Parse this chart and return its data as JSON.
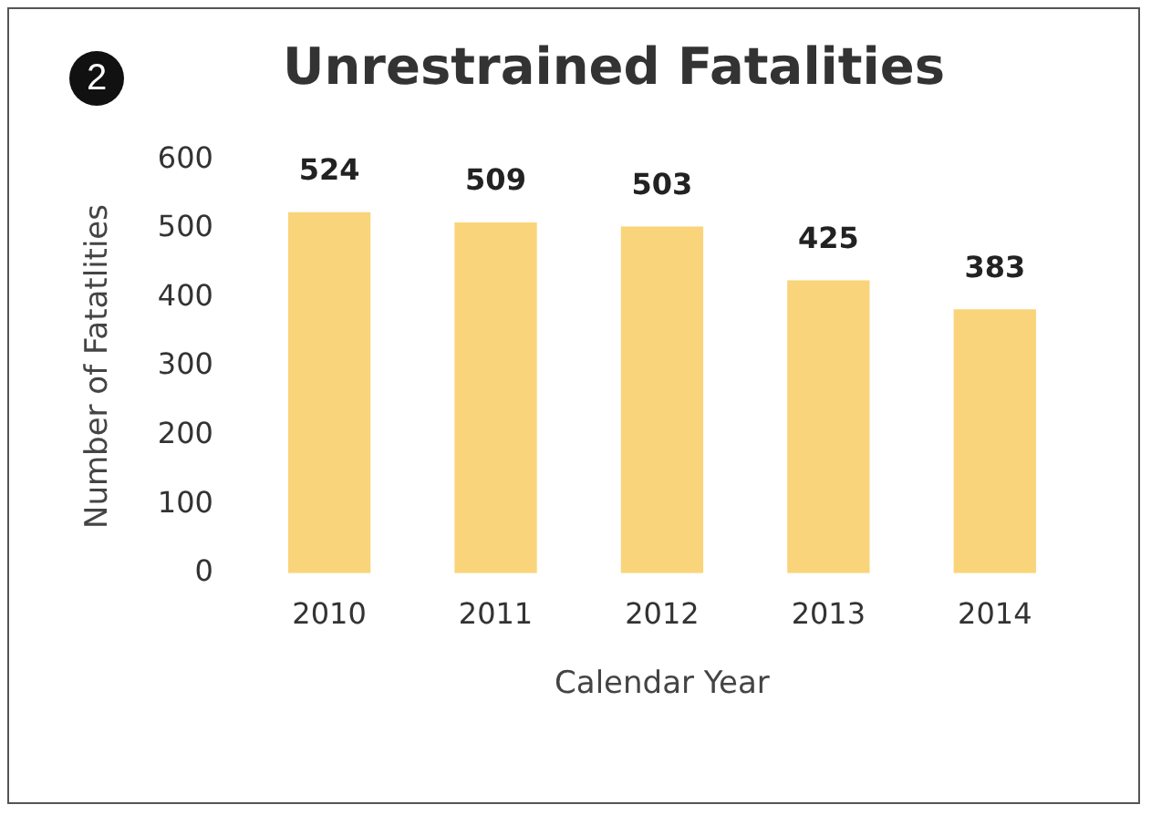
{
  "chart_data": {
    "type": "bar",
    "title": "Unrestrained Fatalities",
    "xlabel": "Calendar Year",
    "ylabel": "Number of Fatatlities",
    "annotations": [
      "2"
    ],
    "categories": [
      "2010",
      "2011",
      "2012",
      "2013",
      "2014"
    ],
    "values": [
      524,
      509,
      503,
      425,
      383
    ],
    "color": "#f9d47a",
    "ylim": [
      0,
      600
    ],
    "yticks": [
      0,
      100,
      200,
      300,
      400,
      500,
      600
    ],
    "grid": false,
    "legend": false,
    "data_labels": true
  }
}
